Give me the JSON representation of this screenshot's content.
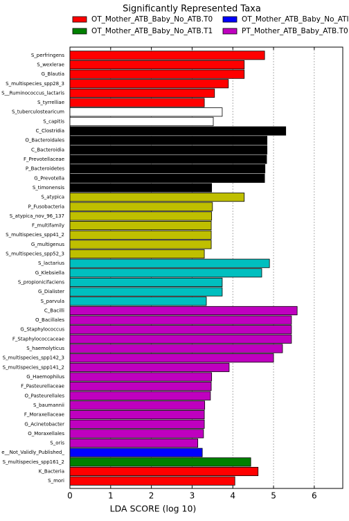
{
  "chart_data": {
    "type": "barh",
    "title": "Significantly Represented Taxa",
    "x_label": "LDA SCORE (log 10)",
    "legend": [
      {
        "name": "OT_Mother_ATB_Baby_No_ATB.T0",
        "color": "#ff0000"
      },
      {
        "name": "OT_Mother_ATB_Baby_No_ATB.T1",
        "color": "#008000"
      },
      {
        "name": "OT_Mother_ATB_Baby_No_ATI",
        "color": "#0000ff"
      },
      {
        "name": "PT_Mother_ATB_Baby_ATB.T0",
        "color": "#bf00bf"
      }
    ],
    "categories": [
      "S_perfringens",
      "S_wexlerae",
      "G_Blautia",
      "S_multispecies_spp28_3",
      "S__Ruminococcus_lactaris",
      "S_tyrrelliae",
      "S_tuberculostearicum",
      "S_capitis",
      "C_Clostridia",
      "O_Bacteroidales",
      "C_Bacteroidia",
      "F_Prevotellaceae",
      "P_Bacteroidetes",
      "G_Prevotella",
      "S_timonensis",
      "S_atypica",
      "P_Fusobacteria",
      "S_atypica_nov_96_137",
      "F_multifamily",
      "S_multispecies_spp41_2",
      "G_multigenus",
      "S_multispecies_spp52_3",
      "S_lactarius",
      "G_Klebsiella",
      "S_propionicifaciens",
      "G_Dialister",
      "S_parvula",
      "C_Bacilli",
      "O_Bacillales",
      "G_Staphylococcus",
      "F_Staphylococcaceae",
      "S_haemolyticus",
      "S_multispecies_spp142_3",
      "S_multispecies_spp141_2",
      "G_Haemophilus",
      "F_Pasteurellaceae",
      "O_Pasteurellales",
      "S_baumannii",
      "F_Moraxellaceae",
      "G_Acinetobacter",
      "O_Moraxellales",
      "S_oris",
      "e__Not_Validly_Published_",
      "S_multispecies_spp161_2",
      "K_Bacteria",
      "S_mori"
    ],
    "values": [
      4.78,
      4.28,
      4.28,
      3.89,
      3.55,
      3.3,
      3.74,
      3.52,
      5.3,
      4.84,
      4.84,
      4.83,
      4.79,
      4.78,
      3.48,
      4.28,
      3.5,
      3.48,
      3.47,
      3.47,
      3.47,
      3.3,
      4.9,
      4.71,
      3.74,
      3.74,
      3.35,
      5.58,
      5.44,
      5.44,
      5.44,
      5.22,
      5.0,
      3.91,
      3.48,
      3.47,
      3.45,
      3.31,
      3.3,
      3.3,
      3.28,
      3.14,
      3.25,
      4.44,
      4.62,
      4.05
    ],
    "colors": [
      "#ff0000",
      "#ff0000",
      "#ff0000",
      "#ff0000",
      "#ff0000",
      "#ff0000",
      "#ffffff",
      "#ffffff",
      "#000000",
      "#000000",
      "#000000",
      "#000000",
      "#000000",
      "#000000",
      "#000000",
      "#bfbf00",
      "#bfbf00",
      "#bfbf00",
      "#bfbf00",
      "#bfbf00",
      "#bfbf00",
      "#bfbf00",
      "#00bfbf",
      "#00bfbf",
      "#00bfbf",
      "#00bfbf",
      "#00bfbf",
      "#bf00bf",
      "#bf00bf",
      "#bf00bf",
      "#bf00bf",
      "#bf00bf",
      "#bf00bf",
      "#bf00bf",
      "#bf00bf",
      "#bf00bf",
      "#bf00bf",
      "#bf00bf",
      "#bf00bf",
      "#bf00bf",
      "#bf00bf",
      "#bf00bf",
      "#0000ff",
      "#008000",
      "#ff0000",
      "#ff0000"
    ],
    "xlim": [
      0,
      6.7
    ],
    "xticks": [
      0,
      1,
      2,
      3,
      4,
      5,
      6
    ],
    "grid": true
  }
}
